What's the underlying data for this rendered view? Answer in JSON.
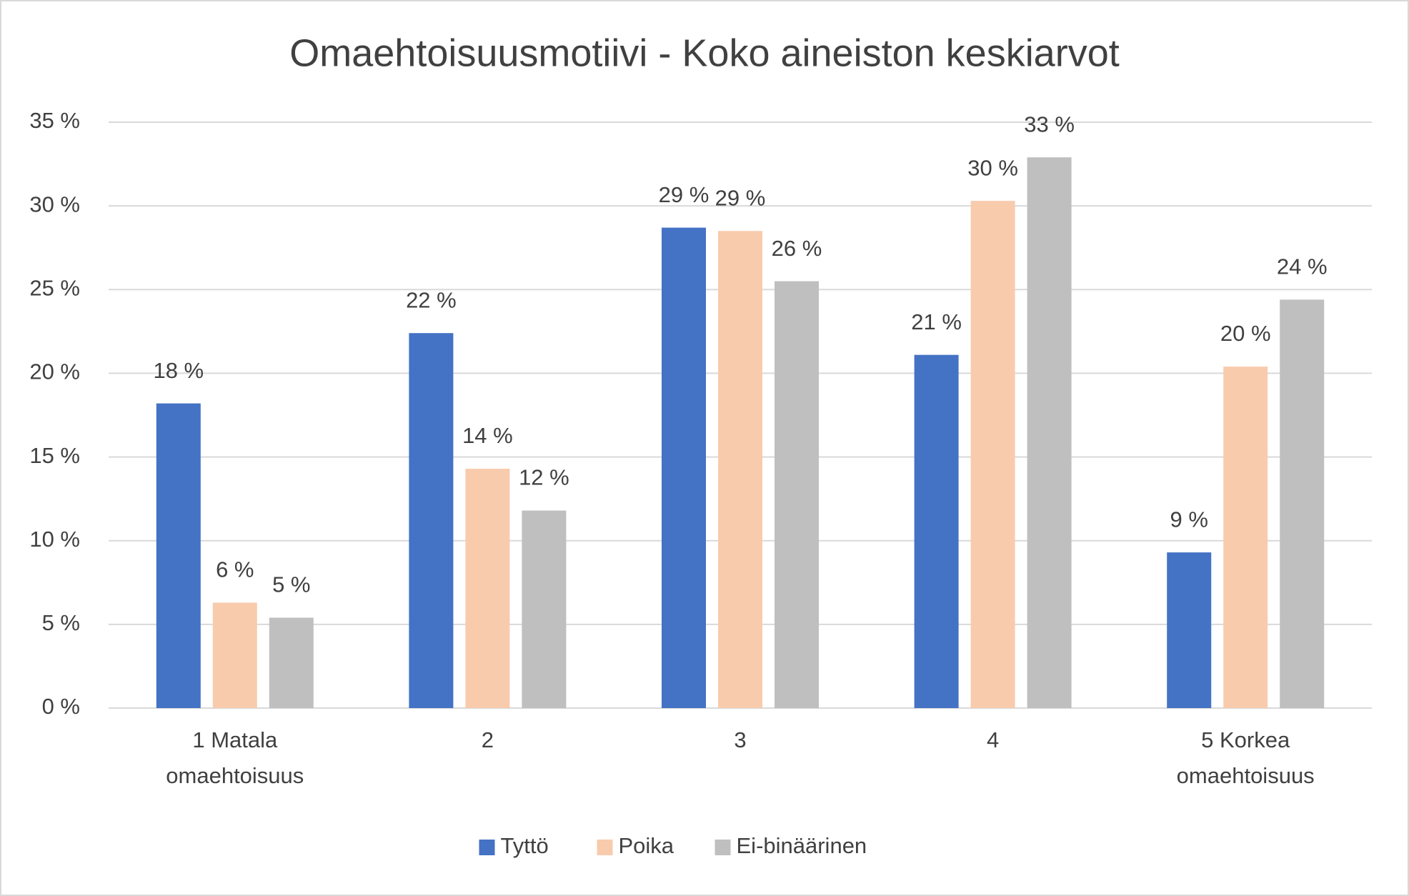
{
  "chart_data": {
    "type": "bar",
    "title": "Omaehtoisuusmotiivi - Koko aineiston keskiarvot",
    "categories": [
      "1 Matala omaehtoisuus",
      "2",
      "3",
      "4",
      "5 Korkea omaehtoisuus"
    ],
    "series": [
      {
        "name": "Tyttö",
        "color": "#4472c4",
        "values": [
          18.2,
          22.4,
          28.7,
          21.1,
          9.3
        ],
        "value_labels": [
          "18 %",
          "22 %",
          "29 %",
          "21 %",
          "9 %"
        ]
      },
      {
        "name": "Poika",
        "color": "#f8cbad",
        "values": [
          6.3,
          14.3,
          28.5,
          30.3,
          20.4
        ],
        "value_labels": [
          "6 %",
          "14 %",
          "29 %",
          "30 %",
          "20 %"
        ]
      },
      {
        "name": "Ei-binäärinen",
        "color": "#bfbfbf",
        "values": [
          5.4,
          11.8,
          25.5,
          32.9,
          24.4
        ],
        "value_labels": [
          "5 %",
          "12 %",
          "26 %",
          "33 %",
          "24 %"
        ]
      }
    ],
    "ylim": [
      0,
      35
    ],
    "yticks": [
      {
        "value": 0,
        "label": "0 %"
      },
      {
        "value": 5,
        "label": "5 %"
      },
      {
        "value": 10,
        "label": "10 %"
      },
      {
        "value": 15,
        "label": "15 %"
      },
      {
        "value": 20,
        "label": "20 %"
      },
      {
        "value": 25,
        "label": "25 %"
      },
      {
        "value": 30,
        "label": "30 %"
      },
      {
        "value": 35,
        "label": "35 %"
      }
    ],
    "grid": true,
    "legend": "bottom"
  }
}
